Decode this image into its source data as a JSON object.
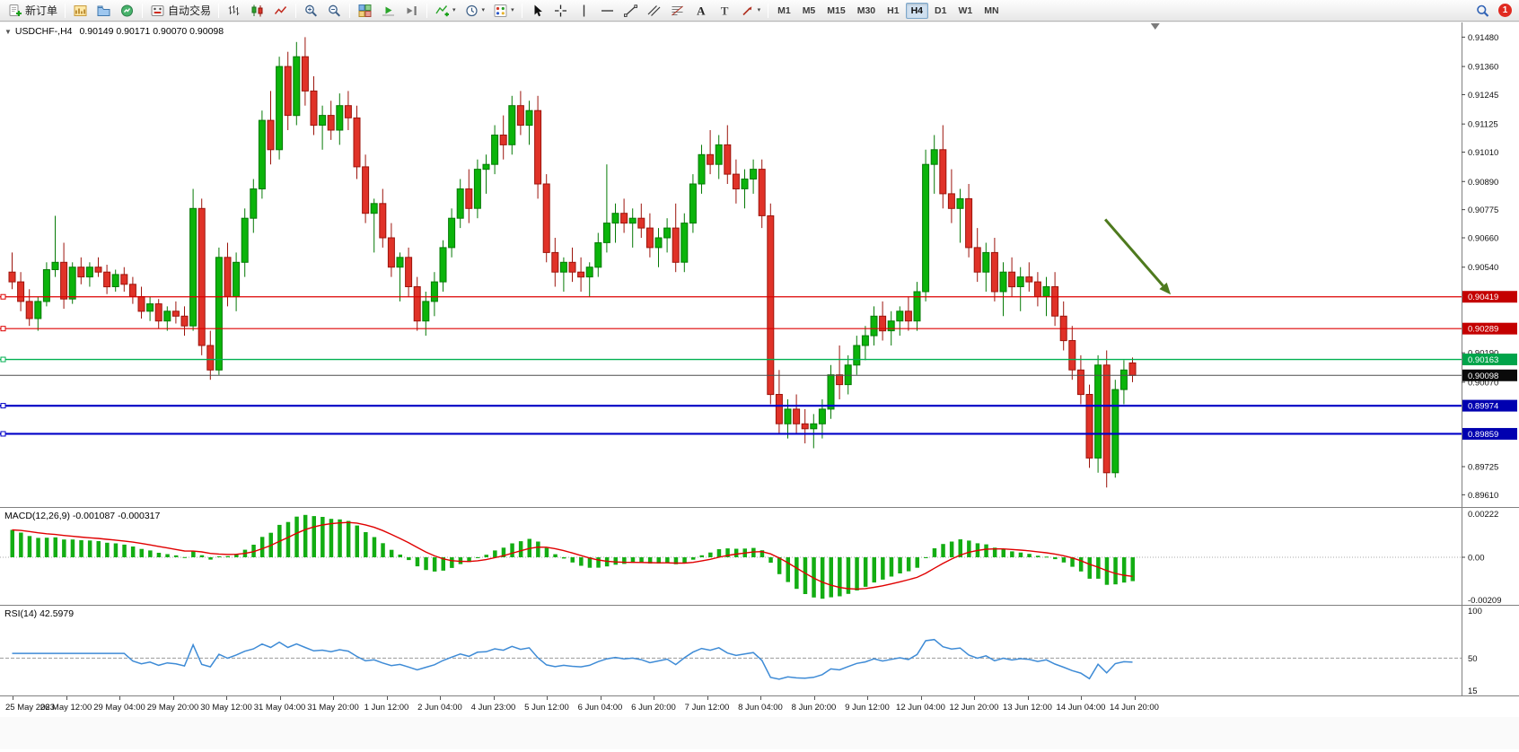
{
  "toolbar": {
    "new_order_label": "新订单",
    "autotrade_label": "自动交易",
    "timeframes": [
      "M1",
      "M5",
      "M15",
      "M30",
      "H1",
      "H4",
      "D1",
      "W1",
      "MN"
    ],
    "active_timeframe": "H4",
    "notification_badge": "1"
  },
  "icons": {
    "collapse_arrow": "▼",
    "dropdown_caret": "▾",
    "text_tool": "A",
    "label_tool": "T"
  },
  "chart_header": {
    "symbol_title": "USDCHF-,H4",
    "ohlc_text": "0.90149 0.90171 0.90070 0.90098"
  },
  "indicators": {
    "macd": {
      "label": "MACD(12,26,9) -0.001087 -0.000317",
      "params": {
        "fast": 12,
        "slow": 26,
        "signal": 9
      },
      "values_text": [
        "-0.001087",
        "-0.000317"
      ],
      "scale_labels": [
        "0.00222",
        "0.00",
        "-0.00209"
      ]
    },
    "rsi": {
      "label": "RSI(14) 42.5979",
      "period": 14,
      "value_text": "42.5979",
      "scale_labels": [
        "100",
        "50",
        "15"
      ]
    }
  },
  "chart_data": {
    "type": "candlestick",
    "symbol": "USDCHF-",
    "timeframe": "H4",
    "price_axis": {
      "min": 0.8956,
      "max": 0.9154,
      "ticks": [
        "0.91480",
        "0.91360",
        "0.91245",
        "0.91125",
        "0.91010",
        "0.90890",
        "0.90775",
        "0.90660",
        "0.90540",
        "0.90190",
        "0.90070",
        "0.89725",
        "0.89610"
      ]
    },
    "time_axis_labels": [
      "25 May 2023",
      "26 May 12:00",
      "29 May 04:00",
      "29 May 20:00",
      "30 May 12:00",
      "31 May 04:00",
      "31 May 20:00",
      "1 Jun 12:00",
      "2 Jun 04:00",
      "4 Jun 23:00",
      "5 Jun 12:00",
      "6 Jun 04:00",
      "6 Jun 20:00",
      "7 Jun 12:00",
      "8 Jun 04:00",
      "8 Jun 20:00",
      "9 Jun 12:00",
      "12 Jun 04:00",
      "12 Jun 20:00",
      "13 Jun 12:00",
      "14 Jun 04:00",
      "14 Jun 20:00"
    ],
    "candles": [
      [
        0.9052,
        0.906,
        0.9045,
        0.9048
      ],
      [
        0.9048,
        0.9052,
        0.9036,
        0.904
      ],
      [
        0.904,
        0.9045,
        0.903,
        0.9033
      ],
      [
        0.9033,
        0.9042,
        0.9028,
        0.904
      ],
      [
        0.904,
        0.9056,
        0.9038,
        0.9053
      ],
      [
        0.9053,
        0.9075,
        0.905,
        0.9056
      ],
      [
        0.9056,
        0.9064,
        0.9037,
        0.9041
      ],
      [
        0.9041,
        0.9056,
        0.9039,
        0.9054
      ],
      [
        0.9054,
        0.9058,
        0.9047,
        0.905
      ],
      [
        0.905,
        0.9056,
        0.9046,
        0.9054
      ],
      [
        0.9054,
        0.9058,
        0.905,
        0.9052
      ],
      [
        0.9052,
        0.9055,
        0.9043,
        0.9046
      ],
      [
        0.9046,
        0.9053,
        0.9044,
        0.9051
      ],
      [
        0.9051,
        0.9054,
        0.9044,
        0.9047
      ],
      [
        0.9047,
        0.905,
        0.9039,
        0.9042
      ],
      [
        0.9042,
        0.9046,
        0.9033,
        0.9036
      ],
      [
        0.9036,
        0.9042,
        0.9032,
        0.9039
      ],
      [
        0.9039,
        0.9041,
        0.9029,
        0.9032
      ],
      [
        0.9032,
        0.9038,
        0.9028,
        0.9036
      ],
      [
        0.9036,
        0.904,
        0.9031,
        0.9034
      ],
      [
        0.9034,
        0.9038,
        0.9026,
        0.903
      ],
      [
        0.903,
        0.9086,
        0.9028,
        0.9078
      ],
      [
        0.9078,
        0.9082,
        0.9018,
        0.9022
      ],
      [
        0.9022,
        0.9028,
        0.9008,
        0.9012
      ],
      [
        0.9012,
        0.9062,
        0.901,
        0.9058
      ],
      [
        0.9058,
        0.9064,
        0.9038,
        0.9042
      ],
      [
        0.9042,
        0.906,
        0.9036,
        0.9056
      ],
      [
        0.9056,
        0.9078,
        0.905,
        0.9074
      ],
      [
        0.9074,
        0.909,
        0.9068,
        0.9086
      ],
      [
        0.9086,
        0.9118,
        0.9082,
        0.9114
      ],
      [
        0.9114,
        0.9126,
        0.9096,
        0.9102
      ],
      [
        0.9102,
        0.914,
        0.9098,
        0.9136
      ],
      [
        0.9136,
        0.9142,
        0.911,
        0.9116
      ],
      [
        0.9116,
        0.9146,
        0.9112,
        0.914
      ],
      [
        0.914,
        0.9148,
        0.912,
        0.9126
      ],
      [
        0.9126,
        0.9132,
        0.9108,
        0.9112
      ],
      [
        0.9112,
        0.912,
        0.9102,
        0.9116
      ],
      [
        0.9116,
        0.9122,
        0.9106,
        0.911
      ],
      [
        0.911,
        0.9125,
        0.9104,
        0.912
      ],
      [
        0.912,
        0.9126,
        0.911,
        0.9115
      ],
      [
        0.9115,
        0.912,
        0.909,
        0.9095
      ],
      [
        0.9095,
        0.91,
        0.9072,
        0.9076
      ],
      [
        0.9076,
        0.9082,
        0.906,
        0.908
      ],
      [
        0.908,
        0.9086,
        0.9062,
        0.9066
      ],
      [
        0.9066,
        0.9072,
        0.905,
        0.9054
      ],
      [
        0.9054,
        0.906,
        0.904,
        0.9058
      ],
      [
        0.9058,
        0.9062,
        0.9042,
        0.9046
      ],
      [
        0.9046,
        0.905,
        0.9028,
        0.9032
      ],
      [
        0.9032,
        0.9044,
        0.9026,
        0.904
      ],
      [
        0.904,
        0.9052,
        0.9034,
        0.9048
      ],
      [
        0.9048,
        0.9065,
        0.9044,
        0.9062
      ],
      [
        0.9062,
        0.9078,
        0.9058,
        0.9074
      ],
      [
        0.9074,
        0.909,
        0.907,
        0.9086
      ],
      [
        0.9086,
        0.9094,
        0.9072,
        0.9078
      ],
      [
        0.9078,
        0.9098,
        0.9074,
        0.9094
      ],
      [
        0.9094,
        0.91,
        0.9084,
        0.9096
      ],
      [
        0.9096,
        0.9112,
        0.9092,
        0.9108
      ],
      [
        0.9108,
        0.9116,
        0.9098,
        0.9104
      ],
      [
        0.9104,
        0.9124,
        0.91,
        0.912
      ],
      [
        0.912,
        0.9126,
        0.9108,
        0.9112
      ],
      [
        0.9112,
        0.9122,
        0.9104,
        0.9118
      ],
      [
        0.9118,
        0.9124,
        0.9082,
        0.9088
      ],
      [
        0.9088,
        0.9092,
        0.9056,
        0.906
      ],
      [
        0.906,
        0.9066,
        0.9046,
        0.9052
      ],
      [
        0.9052,
        0.9058,
        0.9044,
        0.9056
      ],
      [
        0.9056,
        0.9062,
        0.9048,
        0.9052
      ],
      [
        0.9052,
        0.9058,
        0.9044,
        0.905
      ],
      [
        0.905,
        0.9056,
        0.9042,
        0.9054
      ],
      [
        0.9054,
        0.9068,
        0.905,
        0.9064
      ],
      [
        0.9064,
        0.9096,
        0.906,
        0.9072
      ],
      [
        0.9072,
        0.908,
        0.9064,
        0.9076
      ],
      [
        0.9076,
        0.9082,
        0.9068,
        0.9072
      ],
      [
        0.9072,
        0.9078,
        0.9062,
        0.9074
      ],
      [
        0.9074,
        0.908,
        0.9066,
        0.907
      ],
      [
        0.907,
        0.9076,
        0.9058,
        0.9062
      ],
      [
        0.9062,
        0.907,
        0.9054,
        0.9066
      ],
      [
        0.9066,
        0.9074,
        0.906,
        0.907
      ],
      [
        0.907,
        0.908,
        0.9052,
        0.9056
      ],
      [
        0.9056,
        0.9076,
        0.9052,
        0.9072
      ],
      [
        0.9072,
        0.9092,
        0.9068,
        0.9088
      ],
      [
        0.9088,
        0.9104,
        0.9084,
        0.91
      ],
      [
        0.91,
        0.911,
        0.9092,
        0.9096
      ],
      [
        0.9096,
        0.9108,
        0.909,
        0.9104
      ],
      [
        0.9104,
        0.9112,
        0.9088,
        0.9092
      ],
      [
        0.9092,
        0.9098,
        0.908,
        0.9086
      ],
      [
        0.9086,
        0.9094,
        0.9078,
        0.909
      ],
      [
        0.909,
        0.9098,
        0.9084,
        0.9094
      ],
      [
        0.9094,
        0.9098,
        0.907,
        0.9075
      ],
      [
        0.9075,
        0.908,
        0.8998,
        0.9002
      ],
      [
        0.9002,
        0.9012,
        0.8986,
        0.899
      ],
      [
        0.899,
        0.9,
        0.8984,
        0.8996
      ],
      [
        0.8996,
        0.9002,
        0.8986,
        0.899
      ],
      [
        0.899,
        0.8996,
        0.8982,
        0.8988
      ],
      [
        0.8988,
        0.8994,
        0.898,
        0.899
      ],
      [
        0.899,
        0.9,
        0.8984,
        0.8996
      ],
      [
        0.8996,
        0.9014,
        0.8992,
        0.901
      ],
      [
        0.901,
        0.9022,
        0.9,
        0.9006
      ],
      [
        0.9006,
        0.9018,
        0.9002,
        0.9014
      ],
      [
        0.9014,
        0.9026,
        0.901,
        0.9022
      ],
      [
        0.9022,
        0.903,
        0.9016,
        0.9026
      ],
      [
        0.9026,
        0.9038,
        0.9022,
        0.9034
      ],
      [
        0.9034,
        0.904,
        0.9024,
        0.9028
      ],
      [
        0.9028,
        0.9036,
        0.9022,
        0.9032
      ],
      [
        0.9032,
        0.9038,
        0.9026,
        0.9036
      ],
      [
        0.9036,
        0.9042,
        0.9028,
        0.9032
      ],
      [
        0.9032,
        0.9048,
        0.9028,
        0.9044
      ],
      [
        0.9044,
        0.9102,
        0.904,
        0.9096
      ],
      [
        0.9096,
        0.9108,
        0.9084,
        0.9102
      ],
      [
        0.9102,
        0.9112,
        0.9078,
        0.9084
      ],
      [
        0.9084,
        0.9094,
        0.9072,
        0.9078
      ],
      [
        0.9078,
        0.9086,
        0.9064,
        0.9082
      ],
      [
        0.9082,
        0.9088,
        0.9058,
        0.9062
      ],
      [
        0.9062,
        0.907,
        0.9048,
        0.9052
      ],
      [
        0.9052,
        0.9064,
        0.9044,
        0.906
      ],
      [
        0.906,
        0.9066,
        0.904,
        0.9044
      ],
      [
        0.9044,
        0.9056,
        0.9034,
        0.9052
      ],
      [
        0.9052,
        0.9058,
        0.9042,
        0.9046
      ],
      [
        0.9046,
        0.9054,
        0.9036,
        0.905
      ],
      [
        0.905,
        0.9056,
        0.9044,
        0.9048
      ],
      [
        0.9048,
        0.9052,
        0.9038,
        0.9042
      ],
      [
        0.9042,
        0.905,
        0.9034,
        0.9046
      ],
      [
        0.9046,
        0.9052,
        0.903,
        0.9034
      ],
      [
        0.9034,
        0.904,
        0.902,
        0.9024
      ],
      [
        0.9024,
        0.903,
        0.9008,
        0.9012
      ],
      [
        0.9012,
        0.9018,
        0.8998,
        0.9002
      ],
      [
        0.9002,
        0.9006,
        0.8972,
        0.8976
      ],
      [
        0.8976,
        0.9018,
        0.897,
        0.9014
      ],
      [
        0.9014,
        0.902,
        0.8964,
        0.897
      ],
      [
        0.897,
        0.9008,
        0.8968,
        0.9004
      ],
      [
        0.9004,
        0.9016,
        0.8998,
        0.9012
      ],
      [
        0.90149,
        0.90171,
        0.9007,
        0.90098
      ]
    ],
    "hlines": [
      {
        "price": 0.90419,
        "label": "0.90419",
        "color": "#dd0000",
        "tag": "#c40000",
        "width": 1.2
      },
      {
        "price": 0.90289,
        "label": "0.90289",
        "color": "#dd0000",
        "tag": "#c40000",
        "width": 1.2
      },
      {
        "price": 0.90163,
        "label": "0.90163",
        "color": "#00b050",
        "tag": "#00a44a",
        "width": 1.3
      },
      {
        "price": 0.89974,
        "label": "0.89974",
        "color": "#0000c8",
        "tag": "#0000b0",
        "width": 2.2
      },
      {
        "price": 0.89859,
        "label": "0.89859",
        "color": "#0000c8",
        "tag": "#0000b0",
        "width": 2.2
      }
    ],
    "bid": {
      "price": 0.90098,
      "label": "0.90098",
      "line_color": "#4d4d4d",
      "tag": "#0a0a0a"
    },
    "annotations": [
      {
        "type": "arrow",
        "from_bar": 127.2,
        "from_price": 0.90735,
        "to_bar": 134.8,
        "to_price": 0.90428,
        "color": "#4e7a1e"
      }
    ],
    "shift_marker_bar": 133,
    "colors": {
      "bull_fill": "#0bb40b",
      "bull_edge": "#067a06",
      "bear_fill": "#e03228",
      "bear_edge": "#9c140c",
      "macd_hist": "#13ad13",
      "macd_signal": "#e00000",
      "rsi_line": "#3e8bd6"
    }
  }
}
